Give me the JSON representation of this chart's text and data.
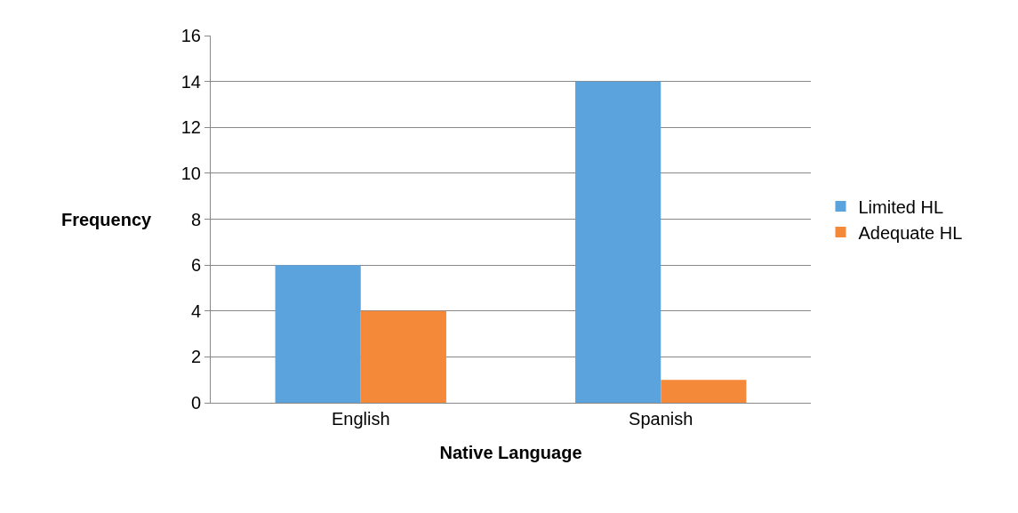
{
  "chart_data": {
    "type": "bar",
    "xlabel": "Native Language",
    "ylabel": "Frequency",
    "categories": [
      "English",
      "Spanish"
    ],
    "series": [
      {
        "name": "Limited HL",
        "color": "#5ba3dc",
        "values": [
          6,
          14
        ]
      },
      {
        "name": "Adequate HL",
        "color": "#f5893a",
        "values": [
          4,
          1
        ]
      }
    ],
    "ylim": [
      0,
      16
    ],
    "yticks": [
      0,
      2,
      4,
      6,
      8,
      10,
      12,
      14,
      16
    ],
    "grid": "y",
    "legend": "right"
  }
}
